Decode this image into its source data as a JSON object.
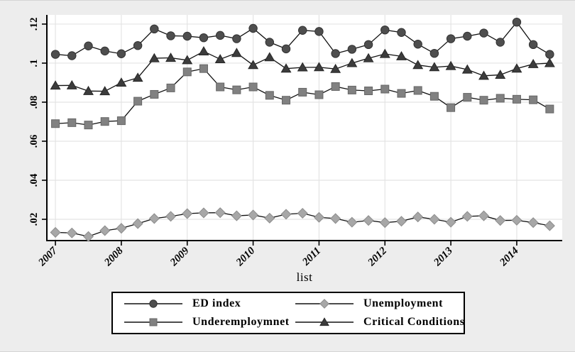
{
  "figure": {
    "background": "#ededed",
    "plot_background": "#ffffff",
    "gridline_color": "#e4e4e4",
    "axis_color": "#000000",
    "line_color": "#111111"
  },
  "chart_data": {
    "type": "line",
    "xlabel": "list",
    "ylabel": "",
    "grid": true,
    "legend_position": "bottom",
    "xlim": [
      2006.87,
      2014.69
    ],
    "ylim": [
      0.0091,
      0.1247
    ],
    "x_ticks": [
      {
        "value": 2007,
        "label": "2007"
      },
      {
        "value": 2008,
        "label": "2008"
      },
      {
        "value": 2009,
        "label": "2009"
      },
      {
        "value": 2010,
        "label": "2010"
      },
      {
        "value": 2011,
        "label": "2011"
      },
      {
        "value": 2012,
        "label": "2012"
      },
      {
        "value": 2013,
        "label": "2013"
      },
      {
        "value": 2014,
        "label": "2014"
      }
    ],
    "y_ticks": [
      {
        "value": 0.02,
        "label": ".02"
      },
      {
        "value": 0.04,
        "label": ".04"
      },
      {
        "value": 0.06,
        "label": ".06"
      },
      {
        "value": 0.08,
        "label": ".08"
      },
      {
        "value": 0.1,
        "label": ".1"
      },
      {
        "value": 0.12,
        "label": ".12"
      }
    ],
    "x": [
      2007,
      2007.25,
      2007.5,
      2007.75,
      2008,
      2008.25,
      2008.5,
      2008.75,
      2009,
      2009.25,
      2009.5,
      2009.75,
      2010,
      2010.25,
      2010.5,
      2010.75,
      2011,
      2011.25,
      2011.5,
      2011.75,
      2012,
      2012.25,
      2012.5,
      2012.75,
      2013,
      2013.25,
      2013.5,
      2013.75,
      2014,
      2014.25,
      2014.5
    ],
    "series": [
      {
        "name": "ED index",
        "marker": "circle",
        "color": "#4e4e4e",
        "edge": "#333333",
        "values": [
          0.1045,
          0.1038,
          0.1088,
          0.1062,
          0.1048,
          0.109,
          0.1175,
          0.114,
          0.1138,
          0.113,
          0.1142,
          0.1125,
          0.1178,
          0.1107,
          0.1073,
          0.1168,
          0.1162,
          0.1049,
          0.1071,
          0.1095,
          0.117,
          0.1157,
          0.1097,
          0.105,
          0.1125,
          0.1138,
          0.1154,
          0.1107,
          0.121,
          0.1095,
          0.1045
        ]
      },
      {
        "name": "Unemployment",
        "marker": "diamond",
        "color": "#a7a7a7",
        "edge": "#8c8c8c",
        "values": [
          0.0133,
          0.013,
          0.0112,
          0.0142,
          0.0154,
          0.0178,
          0.0204,
          0.0215,
          0.0229,
          0.0233,
          0.0234,
          0.0218,
          0.0222,
          0.0206,
          0.0226,
          0.0231,
          0.021,
          0.0204,
          0.0185,
          0.0194,
          0.0183,
          0.019,
          0.0212,
          0.02,
          0.0185,
          0.0215,
          0.0218,
          0.0194,
          0.0195,
          0.0183,
          0.0167
        ]
      },
      {
        "name": "Underemploymnet",
        "marker": "square",
        "color": "#818181",
        "edge": "#666666",
        "values": [
          0.069,
          0.0695,
          0.0683,
          0.0701,
          0.0705,
          0.0805,
          0.084,
          0.0873,
          0.0955,
          0.0972,
          0.0878,
          0.0863,
          0.0878,
          0.0835,
          0.081,
          0.0851,
          0.0838,
          0.088,
          0.0862,
          0.0858,
          0.0867,
          0.0845,
          0.086,
          0.083,
          0.0772,
          0.0825,
          0.081,
          0.082,
          0.0815,
          0.0812,
          0.0765
        ]
      },
      {
        "name": "Critical Conditions",
        "marker": "triangle",
        "color": "#3c3c3c",
        "edge": "#262626",
        "values": [
          0.0885,
          0.0886,
          0.0857,
          0.0856,
          0.09,
          0.0925,
          0.1025,
          0.1027,
          0.1015,
          0.106,
          0.102,
          0.1052,
          0.099,
          0.103,
          0.0972,
          0.0978,
          0.0979,
          0.097,
          0.1,
          0.1025,
          0.1047,
          0.1035,
          0.099,
          0.0979,
          0.0985,
          0.0967,
          0.0935,
          0.094,
          0.0972,
          0.0995,
          0.1
        ]
      }
    ]
  }
}
